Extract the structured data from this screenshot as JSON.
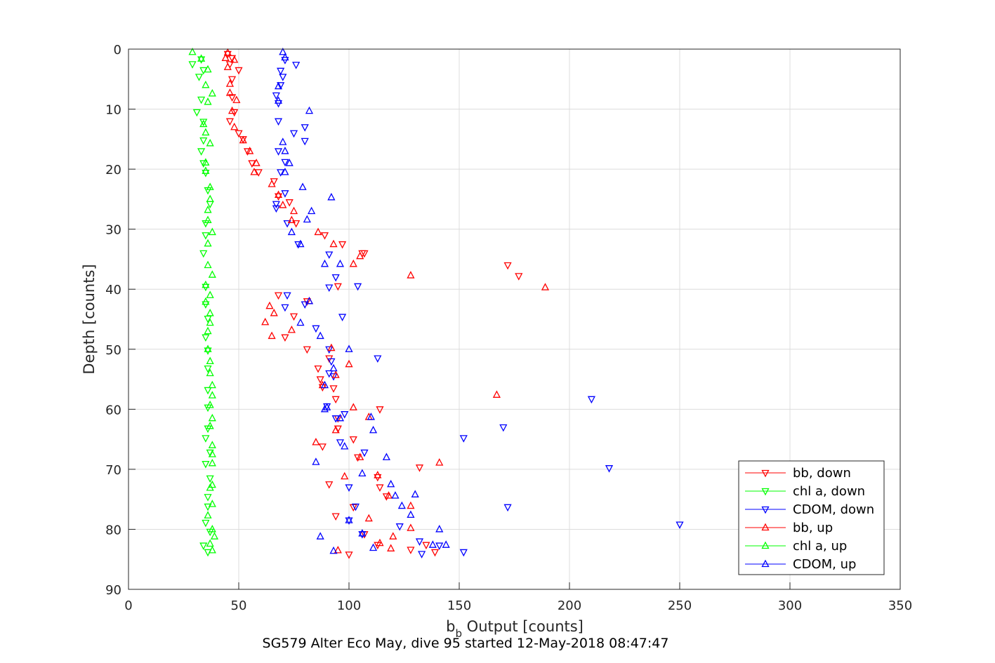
{
  "chart_data": {
    "type": "scatter",
    "title": "",
    "caption": "SG579 Alter Eco May, dive 95 started 12-May-2018 08:47:47",
    "xlabel": {
      "main": "b",
      "subscript": "b",
      "rest": " Output [counts]"
    },
    "ylabel": "Depth [counts]",
    "xlim": [
      0,
      350
    ],
    "ylim": [
      0,
      90
    ],
    "y_reversed": true,
    "grid": true,
    "legend_position": "bottom-right",
    "xticks": [
      0,
      50,
      100,
      150,
      200,
      250,
      300,
      350
    ],
    "yticks": [
      0,
      10,
      20,
      30,
      40,
      50,
      60,
      70,
      80,
      90
    ],
    "series": [
      {
        "name": "bb, down",
        "color": "#ff0000",
        "marker": "triangle-down",
        "points": [
          [
            45,
            0.8
          ],
          [
            47,
            1.5
          ],
          [
            46,
            2.5
          ],
          [
            50,
            3.5
          ],
          [
            47,
            5
          ],
          [
            47,
            8
          ],
          [
            48,
            10.5
          ],
          [
            46,
            12
          ],
          [
            50,
            14
          ],
          [
            52,
            15
          ],
          [
            54,
            17
          ],
          [
            56,
            19
          ],
          [
            59,
            20.5
          ],
          [
            66,
            22
          ],
          [
            68,
            24.5
          ],
          [
            73,
            25.5
          ],
          [
            76,
            29
          ],
          [
            89,
            31
          ],
          [
            97,
            32.5
          ],
          [
            106,
            34
          ],
          [
            107,
            34
          ],
          [
            95,
            39.5
          ],
          [
            172,
            36
          ],
          [
            177,
            37.8
          ],
          [
            68,
            41
          ],
          [
            81,
            42
          ],
          [
            75,
            44.5
          ],
          [
            71,
            48
          ],
          [
            81,
            50
          ],
          [
            91,
            51.5
          ],
          [
            86,
            53.2
          ],
          [
            87,
            55
          ],
          [
            88,
            56.3
          ],
          [
            93,
            56.5
          ],
          [
            94,
            58.3
          ],
          [
            114,
            60
          ],
          [
            95,
            61.5
          ],
          [
            95,
            63.2
          ],
          [
            102,
            65
          ],
          [
            88,
            66.2
          ],
          [
            104,
            68
          ],
          [
            91,
            72.5
          ],
          [
            113,
            71.3
          ],
          [
            114,
            73
          ],
          [
            117,
            74.5
          ],
          [
            102,
            76.3
          ],
          [
            132,
            69.7
          ],
          [
            94,
            77.8
          ],
          [
            107,
            80.8
          ],
          [
            113,
            82.6
          ],
          [
            128,
            83.4
          ],
          [
            135,
            82.6
          ],
          [
            139,
            83.8
          ],
          [
            100,
            84.2
          ]
        ]
      },
      {
        "name": "chl a, down",
        "color": "#00ff00",
        "marker": "triangle-down",
        "points": [
          [
            29,
            2.5
          ],
          [
            33,
            1.7
          ],
          [
            34,
            3.5
          ],
          [
            32,
            4.6
          ],
          [
            33,
            8.4
          ],
          [
            31,
            10.5
          ],
          [
            34,
            12.1
          ],
          [
            34,
            15.2
          ],
          [
            33,
            17
          ],
          [
            34,
            19
          ],
          [
            35,
            20.6
          ],
          [
            36,
            23.5
          ],
          [
            37,
            25.8
          ],
          [
            35,
            29
          ],
          [
            35,
            31
          ],
          [
            34,
            34
          ],
          [
            35,
            39.6
          ],
          [
            35,
            42.5
          ],
          [
            36,
            44.9
          ],
          [
            35,
            48
          ],
          [
            36,
            50.2
          ],
          [
            36,
            53.2
          ],
          [
            36,
            56.8
          ],
          [
            36,
            59.7
          ],
          [
            36,
            63.2
          ],
          [
            35,
            64.8
          ],
          [
            37,
            67.2
          ],
          [
            35,
            69.1
          ],
          [
            37,
            71.5
          ],
          [
            36,
            74.6
          ],
          [
            36,
            76.2
          ],
          [
            35,
            78.9
          ],
          [
            37,
            80.4
          ],
          [
            34,
            82.7
          ],
          [
            36,
            83.8
          ]
        ]
      },
      {
        "name": "CDOM, down",
        "color": "#0000ff",
        "marker": "triangle-down",
        "points": [
          [
            71,
            1.8
          ],
          [
            76,
            2.6
          ],
          [
            69,
            3.6
          ],
          [
            70,
            4.6
          ],
          [
            69,
            6
          ],
          [
            67,
            7.7
          ],
          [
            68,
            9
          ],
          [
            68,
            12
          ],
          [
            80,
            13
          ],
          [
            75,
            14
          ],
          [
            80,
            15.3
          ],
          [
            68,
            17
          ],
          [
            71,
            18.8
          ],
          [
            69,
            20.5
          ],
          [
            71,
            24
          ],
          [
            67,
            26.5
          ],
          [
            67,
            25.8
          ],
          [
            72,
            29
          ],
          [
            77,
            32.5
          ],
          [
            91,
            34.2
          ],
          [
            94,
            38
          ],
          [
            91,
            39.7
          ],
          [
            104,
            39.5
          ],
          [
            97,
            44.6
          ],
          [
            92,
            52
          ],
          [
            91,
            54
          ],
          [
            93,
            54.5
          ],
          [
            90,
            59.5
          ],
          [
            94,
            61.5
          ],
          [
            100,
            73
          ],
          [
            113,
            51.5
          ],
          [
            96,
            65.5
          ],
          [
            103,
            76.2
          ],
          [
            152,
            64.8
          ],
          [
            170,
            63
          ],
          [
            172,
            76.3
          ],
          [
            210,
            58.3
          ],
          [
            218,
            69.8
          ],
          [
            250,
            79.2
          ],
          [
            100,
            78.5
          ],
          [
            106,
            80.8
          ],
          [
            132,
            82
          ],
          [
            141,
            82.7
          ],
          [
            152,
            83.8
          ],
          [
            133,
            84.1
          ],
          [
            123,
            79.5
          ],
          [
            98,
            60.8
          ],
          [
            72,
            41
          ],
          [
            80,
            42.5
          ],
          [
            71,
            43
          ],
          [
            85,
            46.5
          ],
          [
            91,
            50
          ],
          [
            107,
            67.2
          ]
        ]
      },
      {
        "name": "bb, up",
        "color": "#ff0000",
        "marker": "triangle-up",
        "points": [
          [
            45,
            0.6
          ],
          [
            44,
            1.5
          ],
          [
            48,
            1.8
          ],
          [
            45,
            3
          ],
          [
            46,
            5.8
          ],
          [
            46,
            7.3
          ],
          [
            49,
            8.5
          ],
          [
            47,
            10.3
          ],
          [
            48,
            13
          ],
          [
            52,
            15.2
          ],
          [
            55,
            17
          ],
          [
            58,
            19
          ],
          [
            57,
            20.5
          ],
          [
            65,
            22.5
          ],
          [
            68,
            24.3
          ],
          [
            70,
            26
          ],
          [
            75,
            27
          ],
          [
            74,
            28.5
          ],
          [
            86,
            30.5
          ],
          [
            93,
            32.5
          ],
          [
            105,
            34.5
          ],
          [
            102,
            35.8
          ],
          [
            128,
            37.7
          ],
          [
            189,
            39.7
          ],
          [
            82,
            42
          ],
          [
            64,
            42.8
          ],
          [
            66,
            44
          ],
          [
            62,
            45.5
          ],
          [
            74,
            46.8
          ],
          [
            65,
            47.8
          ],
          [
            92,
            49.8
          ],
          [
            100,
            52.5
          ],
          [
            94,
            54.3
          ],
          [
            88,
            56
          ],
          [
            102,
            59.7
          ],
          [
            109,
            61.3
          ],
          [
            94,
            63.5
          ],
          [
            85,
            65.5
          ],
          [
            105,
            68
          ],
          [
            167,
            57.6
          ],
          [
            141,
            68.9
          ],
          [
            113,
            71
          ],
          [
            98,
            71.2
          ],
          [
            118,
            74.4
          ],
          [
            128,
            76.1
          ],
          [
            109,
            78.2
          ],
          [
            120,
            81.2
          ],
          [
            128,
            79.8
          ],
          [
            119,
            83.2
          ],
          [
            114,
            82.3
          ],
          [
            95,
            83.5
          ]
        ]
      },
      {
        "name": "chl a, up",
        "color": "#00ff00",
        "marker": "triangle-up",
        "points": [
          [
            29,
            0.5
          ],
          [
            33,
            1.6
          ],
          [
            36,
            3.4
          ],
          [
            35,
            6
          ],
          [
            38,
            7.4
          ],
          [
            36,
            8.8
          ],
          [
            34,
            12.5
          ],
          [
            35,
            13.9
          ],
          [
            37,
            15.7
          ],
          [
            35,
            18.9
          ],
          [
            35,
            20.3
          ],
          [
            37,
            23
          ],
          [
            37,
            25
          ],
          [
            36,
            26.8
          ],
          [
            36,
            28.5
          ],
          [
            38,
            30.5
          ],
          [
            36,
            32.4
          ],
          [
            36,
            36
          ],
          [
            38,
            37.6
          ],
          [
            35,
            39.3
          ],
          [
            37,
            41
          ],
          [
            35,
            42.1
          ],
          [
            37,
            44
          ],
          [
            37,
            45.6
          ],
          [
            36,
            47
          ],
          [
            36,
            50
          ],
          [
            37,
            52
          ],
          [
            37,
            54
          ],
          [
            38,
            56
          ],
          [
            38,
            57.7
          ],
          [
            37,
            59.3
          ],
          [
            38,
            61.5
          ],
          [
            37,
            62.8
          ],
          [
            38,
            66
          ],
          [
            38,
            67.5
          ],
          [
            38,
            69
          ],
          [
            38,
            72.6
          ],
          [
            37,
            73.1
          ],
          [
            38,
            75.8
          ],
          [
            36,
            77.7
          ],
          [
            38,
            80
          ],
          [
            39,
            81.2
          ],
          [
            37,
            82.4
          ],
          [
            38,
            83.5
          ]
        ]
      },
      {
        "name": "CDOM, up",
        "color": "#0000ff",
        "marker": "triangle-up",
        "points": [
          [
            70,
            0.5
          ],
          [
            71,
            1.4
          ],
          [
            68,
            6.2
          ],
          [
            68,
            8.6
          ],
          [
            82,
            10.3
          ],
          [
            70,
            15.5
          ],
          [
            71,
            17
          ],
          [
            73,
            19
          ],
          [
            71,
            20.5
          ],
          [
            79,
            23
          ],
          [
            92,
            24.7
          ],
          [
            83,
            27
          ],
          [
            81,
            28.4
          ],
          [
            74,
            30.5
          ],
          [
            78,
            32.5
          ],
          [
            89,
            35.8
          ],
          [
            96,
            35.8
          ],
          [
            82,
            42
          ],
          [
            78,
            45.6
          ],
          [
            87,
            47.8
          ],
          [
            100,
            50
          ],
          [
            89,
            56
          ],
          [
            93,
            53.2
          ],
          [
            90,
            59.7
          ],
          [
            89,
            60
          ],
          [
            96,
            61.5
          ],
          [
            110,
            61.3
          ],
          [
            111,
            63.5
          ],
          [
            98,
            66.2
          ],
          [
            117,
            68
          ],
          [
            85,
            68.8
          ],
          [
            106,
            70.7
          ],
          [
            119,
            72.5
          ],
          [
            121,
            74.4
          ],
          [
            130,
            74.2
          ],
          [
            124,
            76.1
          ],
          [
            128,
            77.6
          ],
          [
            141,
            80
          ],
          [
            87,
            81.2
          ],
          [
            111,
            83.1
          ],
          [
            138,
            82.6
          ],
          [
            144,
            82.6
          ],
          [
            93,
            83.6
          ],
          [
            100,
            78.5
          ],
          [
            106,
            80.7
          ]
        ]
      }
    ]
  }
}
